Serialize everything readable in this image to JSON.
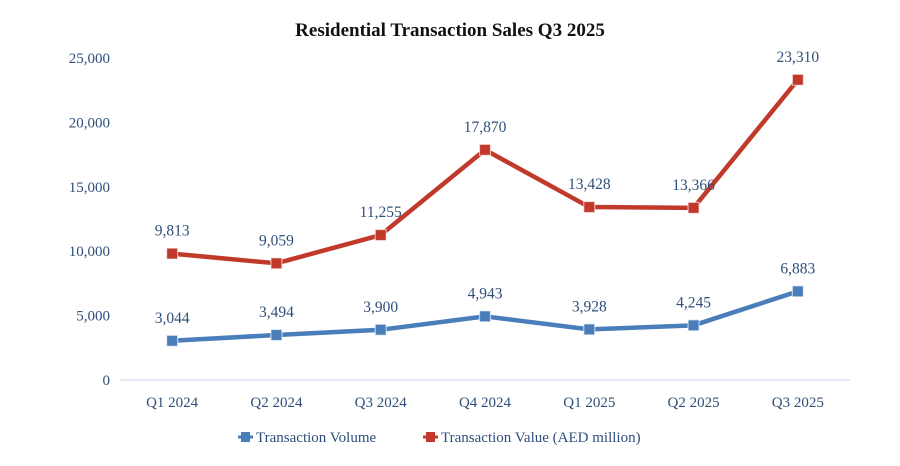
{
  "chart_data": {
    "type": "line",
    "title": "Residential Transaction  Sales Q3 2025",
    "xlabel": "",
    "ylabel": "",
    "categories": [
      "Q1 2024",
      "Q2 2024",
      "Q3 2024",
      "Q4 2024",
      "Q1 2025",
      "Q2 2025",
      "Q3 2025"
    ],
    "ylim": [
      0,
      25000
    ],
    "yticks": [
      0,
      5000,
      10000,
      15000,
      20000,
      25000
    ],
    "ytick_labels": [
      "0",
      "5,000",
      "10,000",
      "15,000",
      "20,000",
      "25,000"
    ],
    "grid": false,
    "legend_position": "bottom-center",
    "series": [
      {
        "name": "Transaction Volume",
        "color": "#4a7ebb",
        "values": [
          3044,
          3494,
          3900,
          4943,
          3928,
          4245,
          6883
        ],
        "labels": [
          "3,044",
          "3,494",
          "3,900",
          "4,943",
          "3,928",
          "4,245",
          "6,883"
        ]
      },
      {
        "name": "Transaction Value (AED million)",
        "color": "#c0392b",
        "values": [
          9813,
          9059,
          11255,
          17870,
          13428,
          13366,
          23310
        ],
        "labels": [
          "9,813",
          "9,059",
          "11,255",
          "17,870",
          "13,428",
          "13,366",
          "23,310"
        ]
      }
    ]
  },
  "colors": {
    "axis_text": "#2f4f7a",
    "axis_line": "#d6dcf0"
  }
}
